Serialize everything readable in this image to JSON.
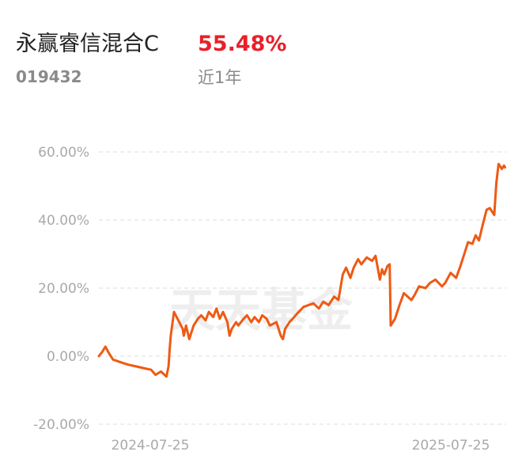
{
  "header": {
    "fund_name": "永赢睿信混合C",
    "return_value": "55.48%",
    "fund_code": "019432",
    "period_label": "近1年"
  },
  "watermark": "天天基金",
  "colors": {
    "line": "#ee5a14",
    "return_text": "#e8202a",
    "grid": "#e3e3e3",
    "tick_text": "#a9a9a9"
  },
  "chart_data": {
    "type": "line",
    "title": "",
    "xlabel": "",
    "ylabel": "",
    "ylim": [
      -20,
      60
    ],
    "yticks": [
      -20,
      0,
      20,
      40,
      60
    ],
    "ytick_labels": [
      "-20.00%",
      "0.00%",
      "20.00%",
      "40.00%",
      "60.00%"
    ],
    "xlim": [
      "2024-07-23",
      "2025-08-01"
    ],
    "xtick_labels": [
      {
        "date": "2024-07-25",
        "label": "2024-07-25"
      },
      {
        "date": "2025-07-25",
        "label": "2025-07-25"
      }
    ],
    "grid": true,
    "legend": "none",
    "series": [
      {
        "points": [
          [
            "2024-07-23",
            0.0
          ],
          [
            "2024-07-26",
            1.2
          ],
          [
            "2024-07-29",
            2.8
          ],
          [
            "2024-08-01",
            1.0
          ],
          [
            "2024-08-05",
            -1.0
          ],
          [
            "2024-08-12",
            -1.8
          ],
          [
            "2024-08-19",
            -2.5
          ],
          [
            "2024-08-26",
            -3.0
          ],
          [
            "2024-09-02",
            -3.5
          ],
          [
            "2024-09-09",
            -4.0
          ],
          [
            "2024-09-13",
            -5.5
          ],
          [
            "2024-09-18",
            -4.5
          ],
          [
            "2024-09-23",
            -6.0
          ],
          [
            "2024-09-25",
            -3.0
          ],
          [
            "2024-09-26",
            2.0
          ],
          [
            "2024-09-27",
            6.0
          ],
          [
            "2024-09-30",
            13.0
          ],
          [
            "2024-10-08",
            8.0
          ],
          [
            "2024-10-09",
            6.0
          ],
          [
            "2024-10-11",
            9.0
          ],
          [
            "2024-10-14",
            5.0
          ],
          [
            "2024-10-18",
            9.0
          ],
          [
            "2024-10-22",
            11.0
          ],
          [
            "2024-10-25",
            12.0
          ],
          [
            "2024-10-29",
            10.5
          ],
          [
            "2024-11-01",
            13.0
          ],
          [
            "2024-11-05",
            11.5
          ],
          [
            "2024-11-08",
            14.0
          ],
          [
            "2024-11-11",
            11.0
          ],
          [
            "2024-11-14",
            13.0
          ],
          [
            "2024-11-18",
            10.0
          ],
          [
            "2024-11-20",
            6.0
          ],
          [
            "2024-11-22",
            8.0
          ],
          [
            "2024-11-26",
            10.0
          ],
          [
            "2024-11-28",
            9.0
          ],
          [
            "2024-12-03",
            11.0
          ],
          [
            "2024-12-06",
            12.0
          ],
          [
            "2024-12-10",
            10.0
          ],
          [
            "2024-12-13",
            11.5
          ],
          [
            "2024-12-17",
            10.0
          ],
          [
            "2024-12-20",
            12.0
          ],
          [
            "2024-12-24",
            11.0
          ],
          [
            "2024-12-27",
            9.0
          ],
          [
            "2025-01-02",
            10.0
          ],
          [
            "2025-01-06",
            6.0
          ],
          [
            "2025-01-08",
            5.0
          ],
          [
            "2025-01-10",
            8.0
          ],
          [
            "2025-01-14",
            10.0
          ],
          [
            "2025-01-17",
            11.0
          ],
          [
            "2025-01-21",
            12.5
          ],
          [
            "2025-01-27",
            14.5
          ],
          [
            "2025-02-05",
            15.5
          ],
          [
            "2025-02-10",
            14.0
          ],
          [
            "2025-02-14",
            16.0
          ],
          [
            "2025-02-19",
            15.0
          ],
          [
            "2025-02-24",
            17.5
          ],
          [
            "2025-02-28",
            16.5
          ],
          [
            "2025-03-04",
            24.0
          ],
          [
            "2025-03-07",
            26.0
          ],
          [
            "2025-03-11",
            23.0
          ],
          [
            "2025-03-14",
            26.0
          ],
          [
            "2025-03-18",
            28.5
          ],
          [
            "2025-03-21",
            27.0
          ],
          [
            "2025-03-26",
            29.0
          ],
          [
            "2025-03-31",
            28.0
          ],
          [
            "2025-04-03",
            29.5
          ],
          [
            "2025-04-07",
            22.5
          ],
          [
            "2025-04-09",
            25.5
          ],
          [
            "2025-04-11",
            24.0
          ],
          [
            "2025-04-14",
            26.5
          ],
          [
            "2025-04-16",
            27.0
          ],
          [
            "2025-04-17",
            9.0
          ],
          [
            "2025-04-21",
            11.0
          ],
          [
            "2025-04-25",
            15.0
          ],
          [
            "2025-04-29",
            18.5
          ],
          [
            "2025-05-06",
            16.5
          ],
          [
            "2025-05-09",
            18.0
          ],
          [
            "2025-05-13",
            20.5
          ],
          [
            "2025-05-19",
            20.0
          ],
          [
            "2025-05-23",
            21.5
          ],
          [
            "2025-05-28",
            22.5
          ],
          [
            "2025-06-03",
            20.5
          ],
          [
            "2025-06-06",
            21.5
          ],
          [
            "2025-06-11",
            24.5
          ],
          [
            "2025-06-16",
            23.0
          ],
          [
            "2025-06-20",
            26.5
          ],
          [
            "2025-06-24",
            30.5
          ],
          [
            "2025-06-27",
            33.5
          ],
          [
            "2025-07-01",
            33.0
          ],
          [
            "2025-07-04",
            35.5
          ],
          [
            "2025-07-07",
            34.0
          ],
          [
            "2025-07-10",
            38.0
          ],
          [
            "2025-07-14",
            43.0
          ],
          [
            "2025-07-17",
            43.5
          ],
          [
            "2025-07-21",
            41.5
          ],
          [
            "2025-07-23",
            51.0
          ],
          [
            "2025-07-25",
            56.5
          ],
          [
            "2025-07-28",
            55.0
          ],
          [
            "2025-07-30",
            56.0
          ],
          [
            "2025-07-31",
            55.48
          ]
        ]
      }
    ]
  }
}
